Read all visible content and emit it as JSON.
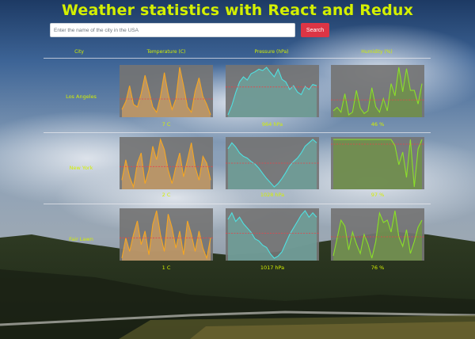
{
  "app": {
    "title": "Weather statistics with React and Redux"
  },
  "search": {
    "placeholder": "Enter the name of the city in the USA",
    "value": "",
    "button_label": "Search"
  },
  "table": {
    "headers": [
      "City",
      "Temperature (C)",
      "Pressure (hPa)",
      "Humidity (%)"
    ],
    "rows": [
      {
        "city": "Los Angeles",
        "temperature": {
          "avg_label": "7 C",
          "values": [
            3,
            6,
            12,
            5,
            4,
            9,
            16,
            10,
            4,
            2,
            8,
            17,
            9,
            3,
            7,
            19,
            12,
            4,
            2,
            10,
            15,
            8,
            5,
            1
          ],
          "avg": 7
        },
        "pressure": {
          "avg_label": "964 hPa",
          "values": [
            920,
            935,
            955,
            972,
            980,
            975,
            985,
            988,
            992,
            990,
            995,
            987,
            980,
            992,
            976,
            972,
            960,
            966,
            956,
            952,
            965,
            960,
            968,
            966
          ],
          "avg": 964
        },
        "humidity": {
          "avg_label": "46 %",
          "values": [
            30,
            35,
            28,
            55,
            24,
            28,
            60,
            34,
            26,
            30,
            64,
            36,
            28,
            48,
            30,
            70,
            52,
            94,
            58,
            92,
            60,
            60,
            40,
            70
          ],
          "avg": 46
        }
      },
      {
        "city": "New York",
        "temperature": {
          "avg_label": "2 C",
          "values": [
            -2,
            4,
            -1,
            -4,
            3,
            6,
            -3,
            1,
            8,
            4,
            10,
            7,
            1,
            -3,
            2,
            6,
            -1,
            4,
            9,
            2,
            -2,
            5,
            3,
            -2
          ],
          "avg": 2
        },
        "pressure": {
          "avg_label": "1028 hPa",
          "values": [
            1045,
            1052,
            1047,
            1040,
            1036,
            1034,
            1030,
            1027,
            1022,
            1016,
            1010,
            1005,
            1000,
            1004,
            1010,
            1017,
            1025,
            1030,
            1034,
            1040,
            1048,
            1052,
            1056,
            1052
          ],
          "avg": 1028
        },
        "humidity": {
          "avg_label": "97 %",
          "values": [
            100,
            100,
            100,
            100,
            100,
            100,
            100,
            100,
            100,
            100,
            100,
            100,
            100,
            100,
            100,
            100,
            96,
            84,
            92,
            76,
            100,
            70,
            94,
            100
          ],
          "avg": 97
        }
      },
      {
        "city": "Fair Lawn",
        "temperature": {
          "avg_label": "1 C",
          "values": [
            -5,
            1,
            -3,
            2,
            6,
            -1,
            3,
            -4,
            5,
            9,
            2,
            -3,
            8,
            4,
            -2,
            3,
            -4,
            6,
            2,
            -3,
            3,
            -2,
            -5,
            1
          ],
          "avg": 1
        },
        "pressure": {
          "avg_label": "1017 hPa",
          "values": [
            1030,
            1036,
            1028,
            1032,
            1026,
            1022,
            1018,
            1012,
            1010,
            1006,
            1004,
            998,
            994,
            996,
            1000,
            1008,
            1016,
            1022,
            1028,
            1034,
            1038,
            1032,
            1036,
            1032
          ],
          "avg": 1017
        },
        "humidity": {
          "avg_label": "76 %",
          "values": [
            60,
            75,
            90,
            85,
            65,
            80,
            70,
            62,
            78,
            70,
            58,
            72,
            96,
            88,
            90,
            80,
            98,
            76,
            68,
            82,
            62,
            72,
            84,
            90
          ],
          "avg": 76
        }
      }
    ]
  },
  "colors": {
    "accent": "#d4f000",
    "search_button": "#dc3545",
    "temperature_line": "#f5a623",
    "temperature_fill": "#c39a66",
    "pressure_line": "#4fe1e1",
    "pressure_fill": "#6fa09a",
    "humidity_line": "#8be028",
    "humidity_fill": "#70904a",
    "average_line": "#e8434a",
    "chart_bg": "#747474"
  }
}
